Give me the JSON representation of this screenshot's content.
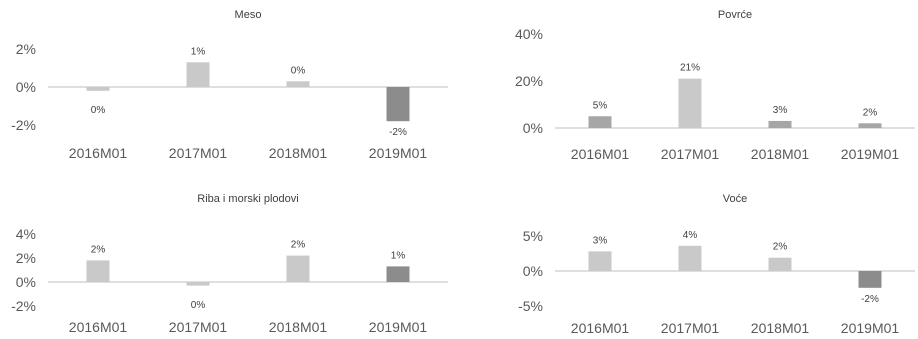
{
  "chart_data": [
    {
      "type": "bar",
      "title": "Meso",
      "categories": [
        "2016M01",
        "2017M01",
        "2018M01",
        "2019M01"
      ],
      "values": [
        -0.2,
        1.3,
        0.3,
        -1.8
      ],
      "data_labels": [
        "0%",
        "1%",
        "0%",
        "-2%"
      ],
      "ylim": [
        -2,
        2
      ],
      "yticks": [
        -2,
        0,
        2
      ],
      "ytick_labels": [
        "-2%",
        "0%",
        "2%"
      ],
      "bar_colors": [
        "#c9c9c9",
        "#c9c9c9",
        "#c9c9c9",
        "#8c8c8c"
      ],
      "grid": false
    },
    {
      "type": "bar",
      "title": "Povrće",
      "categories": [
        "2016M01",
        "2017M01",
        "2018M01",
        "2019M01"
      ],
      "values": [
        5,
        21,
        3,
        2
      ],
      "data_labels": [
        "5%",
        "21%",
        "3%",
        "2%"
      ],
      "ylim": [
        0,
        40
      ],
      "yticks": [
        0,
        20,
        40
      ],
      "ytick_labels": [
        "0%",
        "20%",
        "40%"
      ],
      "bar_colors": [
        "#a6a6a6",
        "#c9c9c9",
        "#a6a6a6",
        "#a6a6a6"
      ],
      "grid": false
    },
    {
      "type": "bar",
      "title": "Riba i morski plodovi",
      "categories": [
        "2016M01",
        "2017M01",
        "2018M01",
        "2019M01"
      ],
      "values": [
        1.8,
        -0.3,
        2.2,
        1.3
      ],
      "data_labels": [
        "2%",
        "0%",
        "2%",
        "1%"
      ],
      "ylim": [
        -2,
        4
      ],
      "yticks": [
        -2,
        0,
        2,
        4
      ],
      "ytick_labels": [
        "-2%",
        "0%",
        "2%",
        "4%"
      ],
      "bar_colors": [
        "#c9c9c9",
        "#c9c9c9",
        "#c9c9c9",
        "#8c8c8c"
      ],
      "grid": false
    },
    {
      "type": "bar",
      "title": "Voće",
      "categories": [
        "2016M01",
        "2017M01",
        "2018M01",
        "2019M01"
      ],
      "values": [
        2.8,
        3.6,
        1.9,
        -2.4
      ],
      "data_labels": [
        "3%",
        "4%",
        "2%",
        "-2%"
      ],
      "ylim": [
        -5,
        5
      ],
      "yticks": [
        -5,
        0,
        5
      ],
      "ytick_labels": [
        "-5%",
        "0%",
        "5%"
      ],
      "bar_colors": [
        "#c9c9c9",
        "#c9c9c9",
        "#c9c9c9",
        "#8c8c8c"
      ],
      "grid": false
    }
  ]
}
